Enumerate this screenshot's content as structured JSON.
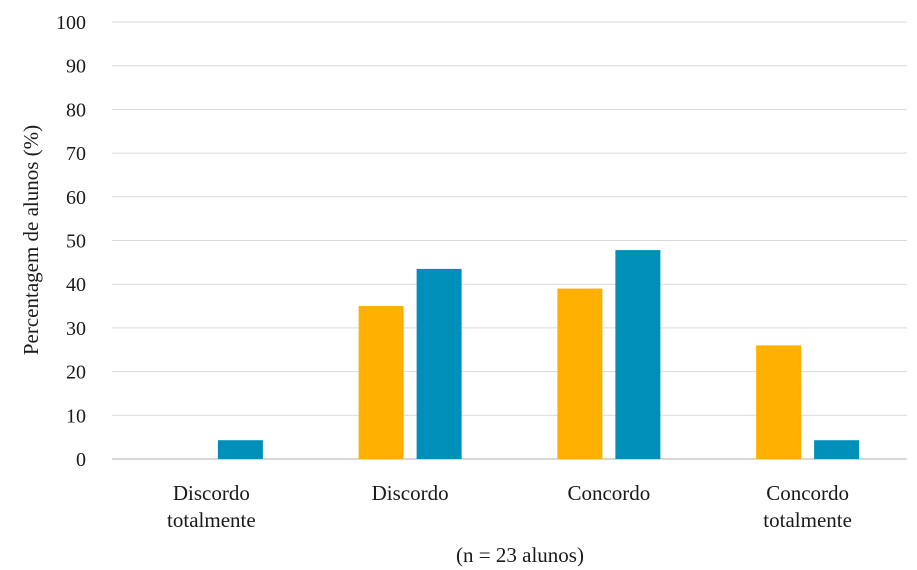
{
  "chart_data": {
    "type": "bar",
    "categories": [
      [
        "Discordo",
        "totalmente"
      ],
      [
        "Discordo"
      ],
      [
        "Concordo"
      ],
      [
        "Concordo",
        "totalmente"
      ]
    ],
    "series": [
      {
        "color": "#FFB000",
        "values": [
          0,
          35,
          39,
          26
        ]
      },
      {
        "color": "#008FB8",
        "values": [
          4.3,
          43.5,
          47.8,
          4.3
        ]
      }
    ],
    "ylabel": "Percentagem de alunos (%)",
    "xlabel": "(n = 23 alunos)",
    "ylim": [
      0,
      100
    ],
    "yticks": [
      0,
      10,
      20,
      30,
      40,
      50,
      60,
      70,
      80,
      90,
      100
    ],
    "grid": true,
    "legend": "none"
  }
}
